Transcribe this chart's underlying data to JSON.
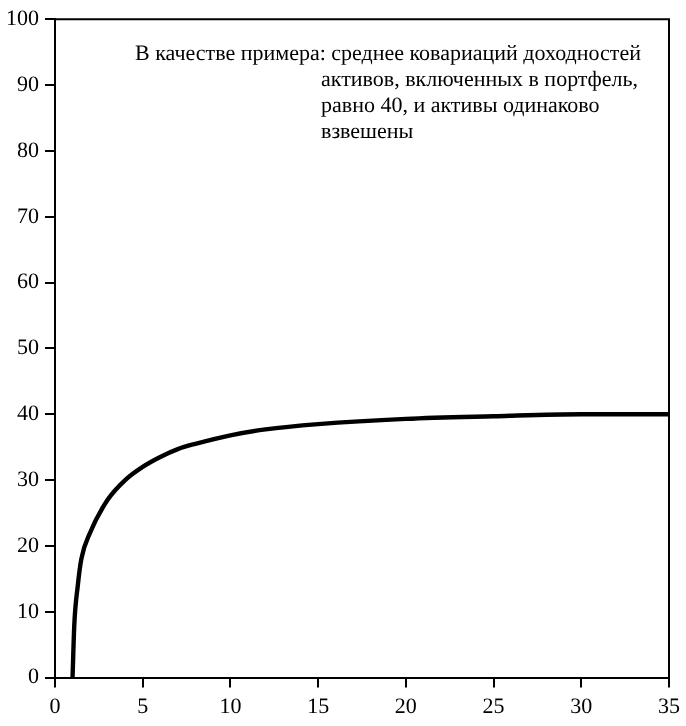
{
  "chart_data": {
    "type": "line",
    "x": [
      1,
      1.1,
      1.3,
      1.5,
      2,
      3,
      4,
      5,
      6,
      7,
      8,
      10,
      12,
      15,
      20,
      25,
      30,
      35
    ],
    "series": [
      {
        "color": "#000000",
        "values": [
          0,
          8,
          14,
          18,
          22,
          27,
          30,
          32,
          33.5,
          34.7,
          35.5,
          36.8,
          37.7,
          38.5,
          39.3,
          39.7,
          40,
          40
        ]
      }
    ],
    "xlim": [
      0,
      35
    ],
    "xticks": [
      0,
      5,
      10,
      15,
      20,
      25,
      30,
      35
    ],
    "ylim": [
      0,
      100
    ],
    "yticks": [
      0,
      10,
      20,
      30,
      40,
      50,
      60,
      70,
      80,
      90,
      100
    ],
    "annotations": [
      "В качестве примера: среднее ковариаций доходностей активов, включенных в портфель, равно 40, и активы одинаково взвешены"
    ],
    "grid": false,
    "legend": false,
    "marker": "none",
    "line_style": "solid"
  }
}
